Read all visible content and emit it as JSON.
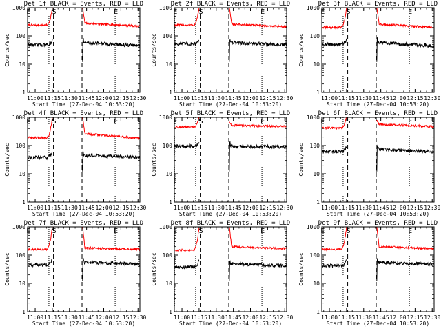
{
  "chart_data": [
    {
      "type": "line",
      "title": "Det 1f BLACK = Events, RED = LLD",
      "xlabel": "Start Time (27-Dec-04 10:53:20)",
      "ylabel": "Counts/sec",
      "yscale": "log",
      "ylim": [
        1,
        1000
      ],
      "xlim": [
        "10:53:20",
        "12:31:40"
      ],
      "x_ticks": [
        "11:00",
        "11:15",
        "11:30",
        "11:45",
        "12:00",
        "12:15",
        "12:30"
      ],
      "y_ticks": [
        "1",
        "10",
        "100",
        "1000"
      ],
      "markers": [
        {
          "label": "E",
          "time": "10:53:30",
          "style": "dotted"
        },
        {
          "label": "",
          "time": "11:12:00",
          "style": "dotted"
        },
        {
          "label": "S",
          "time": "11:16:00",
          "style": "dashed"
        },
        {
          "label": "",
          "time": "11:41:00",
          "style": "dashed"
        },
        {
          "label": "E",
          "time": "12:10:00",
          "style": "dotted"
        }
      ],
      "gap": [
        "11:15:00",
        "11:41:30"
      ],
      "series": [
        {
          "color": "#ff0000",
          "pre_level": 240,
          "peak": 1000,
          "post_peak": 1000,
          "post_level": 280,
          "end_level": 220
        },
        {
          "color": "#000000",
          "pre_level": 48,
          "peak": 70,
          "dip": 12,
          "post_level": 58,
          "end_level": 45
        }
      ]
    },
    {
      "type": "line",
      "title": "Det 2f BLACK = Events, RED = LLD",
      "xlabel": "Start Time (27-Dec-04 10:53:20)",
      "ylabel": "Counts/sec",
      "yscale": "log",
      "ylim": [
        1,
        1000
      ],
      "xlim": [
        "10:53:20",
        "12:31:40"
      ],
      "x_ticks": [
        "11:00",
        "11:15",
        "11:30",
        "11:45",
        "12:00",
        "12:15",
        "12:30"
      ],
      "y_ticks": [
        "1",
        "10",
        "100",
        "1000"
      ],
      "markers": [
        {
          "label": "E",
          "time": "10:53:30",
          "style": "dotted"
        },
        {
          "label": "",
          "time": "11:12:00",
          "style": "dotted"
        },
        {
          "label": "S",
          "time": "11:16:00",
          "style": "dashed"
        },
        {
          "label": "",
          "time": "11:41:00",
          "style": "dashed"
        },
        {
          "label": "E",
          "time": "12:10:00",
          "style": "dotted"
        }
      ],
      "gap": [
        "11:15:00",
        "11:41:30"
      ],
      "series": [
        {
          "color": "#ff0000",
          "pre_level": 240,
          "peak": 1000,
          "post_peak": 1000,
          "post_level": 260,
          "end_level": 210
        },
        {
          "color": "#000000",
          "pre_level": 52,
          "peak": 75,
          "dip": 12,
          "post_level": 58,
          "end_level": 48
        }
      ]
    },
    {
      "type": "line",
      "title": "Det 3f BLACK = Events, RED = LLD",
      "xlabel": "Start Time (27-Dec-04 10:53:20)",
      "ylabel": "Counts/sec",
      "yscale": "log",
      "ylim": [
        1,
        1000
      ],
      "xlim": [
        "10:53:20",
        "12:31:40"
      ],
      "x_ticks": [
        "11:00",
        "11:15",
        "11:30",
        "11:45",
        "12:00",
        "12:15",
        "12:30"
      ],
      "y_ticks": [
        "1",
        "10",
        "100",
        "1000"
      ],
      "markers": [
        {
          "label": "E",
          "time": "10:53:30",
          "style": "dotted"
        },
        {
          "label": "",
          "time": "11:12:00",
          "style": "dotted"
        },
        {
          "label": "S",
          "time": "11:16:00",
          "style": "dashed"
        },
        {
          "label": "",
          "time": "11:41:00",
          "style": "dashed"
        },
        {
          "label": "E",
          "time": "12:10:00",
          "style": "dotted"
        }
      ],
      "gap": [
        "11:15:00",
        "11:41:30"
      ],
      "series": [
        {
          "color": "#ff0000",
          "pre_level": 200,
          "peak": 1000,
          "post_peak": 1000,
          "post_level": 260,
          "end_level": 200
        },
        {
          "color": "#000000",
          "pre_level": 50,
          "peak": 75,
          "dip": 12,
          "post_level": 58,
          "end_level": 45
        }
      ]
    },
    {
      "type": "line",
      "title": "Det 4f BLACK = Events, RED = LLD",
      "xlabel": "Start Time (27-Dec-04 10:53:20)",
      "ylabel": "Counts/sec",
      "yscale": "log",
      "ylim": [
        1,
        1000
      ],
      "xlim": [
        "10:53:20",
        "12:31:40"
      ],
      "x_ticks": [
        "11:00",
        "11:15",
        "11:30",
        "11:45",
        "12:00",
        "12:15",
        "12:30"
      ],
      "y_ticks": [
        "1",
        "10",
        "100",
        "1000"
      ],
      "markers": [
        {
          "label": "E",
          "time": "10:53:30",
          "style": "dotted"
        },
        {
          "label": "",
          "time": "11:12:00",
          "style": "dotted"
        },
        {
          "label": "S",
          "time": "11:16:00",
          "style": "dashed"
        },
        {
          "label": "",
          "time": "11:41:00",
          "style": "dashed"
        },
        {
          "label": "E",
          "time": "12:10:00",
          "style": "dotted"
        }
      ],
      "gap": [
        "11:15:00",
        "11:41:30"
      ],
      "series": [
        {
          "color": "#ff0000",
          "pre_level": 190,
          "peak": 1000,
          "post_peak": 1000,
          "post_level": 260,
          "end_level": 180
        },
        {
          "color": "#000000",
          "pre_level": 38,
          "peak": 60,
          "dip": 12,
          "post_level": 45,
          "end_level": 38
        }
      ]
    },
    {
      "type": "line",
      "title": "Det 5f BLACK = Events, RED = LLD",
      "xlabel": "Start Time (27-Dec-04 10:53:20)",
      "ylabel": "Counts/sec",
      "yscale": "log",
      "ylim": [
        1,
        1000
      ],
      "xlim": [
        "10:53:20",
        "12:31:40"
      ],
      "x_ticks": [
        "11:00",
        "11:15",
        "11:30",
        "11:45",
        "12:00",
        "12:15",
        "12:30"
      ],
      "y_ticks": [
        "1",
        "10",
        "100",
        "1000"
      ],
      "markers": [
        {
          "label": "E",
          "time": "10:53:30",
          "style": "dotted"
        },
        {
          "label": "",
          "time": "11:12:00",
          "style": "dotted"
        },
        {
          "label": "S",
          "time": "11:16:00",
          "style": "dashed"
        },
        {
          "label": "",
          "time": "11:41:00",
          "style": "dashed"
        },
        {
          "label": "E",
          "time": "12:10:00",
          "style": "dotted"
        }
      ],
      "gap": [
        "11:15:00",
        "11:41:30"
      ],
      "series": [
        {
          "color": "#ff0000",
          "pre_level": 450,
          "peak": 1000,
          "post_peak": 700,
          "post_level": 520,
          "end_level": 470
        },
        {
          "color": "#000000",
          "pre_level": 95,
          "peak": 120,
          "dip": 12,
          "post_level": 95,
          "end_level": 90
        }
      ]
    },
    {
      "type": "line",
      "title": "Det 6f BLACK = Events, RED = LLD",
      "xlabel": "Start Time (27-Dec-04 10:53:20)",
      "ylabel": "Counts/sec",
      "yscale": "log",
      "ylim": [
        1,
        1000
      ],
      "xlim": [
        "10:53:20",
        "12:31:40"
      ],
      "x_ticks": [
        "11:00",
        "11:15",
        "11:30",
        "11:45",
        "12:00",
        "12:15",
        "12:30"
      ],
      "y_ticks": [
        "1",
        "10",
        "100",
        "1000"
      ],
      "markers": [
        {
          "label": "E",
          "time": "10:53:30",
          "style": "dotted"
        },
        {
          "label": "",
          "time": "11:12:00",
          "style": "dotted"
        },
        {
          "label": "S",
          "time": "11:16:00",
          "style": "dashed"
        },
        {
          "label": "",
          "time": "11:41:00",
          "style": "dashed"
        },
        {
          "label": "E",
          "time": "12:10:00",
          "style": "dotted"
        }
      ],
      "gap": [
        "11:15:00",
        "11:41:30"
      ],
      "series": [
        {
          "color": "#ff0000",
          "pre_level": 420,
          "peak": 1000,
          "post_peak": 800,
          "post_level": 560,
          "end_level": 470
        },
        {
          "color": "#000000",
          "pre_level": 60,
          "peak": 90,
          "dip": 12,
          "post_level": 75,
          "end_level": 60
        }
      ]
    },
    {
      "type": "line",
      "title": "Det 7f BLACK = Events, RED = LLD",
      "xlabel": "Start Time (27-Dec-04 10:53:20)",
      "ylabel": "Counts/sec",
      "yscale": "log",
      "ylim": [
        1,
        1000
      ],
      "xlim": [
        "10:53:20",
        "12:31:40"
      ],
      "x_ticks": [
        "11:00",
        "11:15",
        "11:30",
        "11:45",
        "12:00",
        "12:15",
        "12:30"
      ],
      "y_ticks": [
        "1",
        "10",
        "100",
        "1000"
      ],
      "markers": [
        {
          "label": "E",
          "time": "10:53:30",
          "style": "dotted"
        },
        {
          "label": "",
          "time": "11:12:00",
          "style": "dotted"
        },
        {
          "label": "S",
          "time": "11:16:00",
          "style": "dashed"
        },
        {
          "label": "",
          "time": "11:41:00",
          "style": "dashed"
        },
        {
          "label": "E",
          "time": "12:10:00",
          "style": "dotted"
        }
      ],
      "gap": [
        "11:15:00",
        "11:41:30"
      ],
      "series": [
        {
          "color": "#ff0000",
          "pre_level": 160,
          "peak": 1000,
          "post_peak": 1000,
          "post_level": 180,
          "end_level": 160
        },
        {
          "color": "#000000",
          "pre_level": 45,
          "peak": 70,
          "dip": 12,
          "post_level": 55,
          "end_level": 48
        }
      ]
    },
    {
      "type": "line",
      "title": "Det 8f BLACK = Events, RED = LLD",
      "xlabel": "Start Time (27-Dec-04 10:53:20)",
      "ylabel": "Counts/sec",
      "yscale": "log",
      "ylim": [
        1,
        1000
      ],
      "xlim": [
        "10:53:20",
        "12:31:40"
      ],
      "x_ticks": [
        "11:00",
        "11:15",
        "11:30",
        "11:45",
        "12:00",
        "12:15",
        "12:30"
      ],
      "y_ticks": [
        "1",
        "10",
        "100",
        "1000"
      ],
      "markers": [
        {
          "label": "E",
          "time": "10:53:30",
          "style": "dotted"
        },
        {
          "label": "",
          "time": "11:12:00",
          "style": "dotted"
        },
        {
          "label": "S",
          "time": "11:16:00",
          "style": "dashed"
        },
        {
          "label": "",
          "time": "11:41:00",
          "style": "dashed"
        },
        {
          "label": "E",
          "time": "12:10:00",
          "style": "dotted"
        }
      ],
      "gap": [
        "11:15:00",
        "11:41:30"
      ],
      "series": [
        {
          "color": "#ff0000",
          "pre_level": 150,
          "peak": 1000,
          "post_peak": 1000,
          "post_level": 200,
          "end_level": 170
        },
        {
          "color": "#000000",
          "pre_level": 38,
          "peak": 65,
          "dip": 12,
          "post_level": 50,
          "end_level": 42
        }
      ]
    },
    {
      "type": "line",
      "title": "Det 9f BLACK = Events, RED = LLD",
      "xlabel": "Start Time (27-Dec-04 10:53:20)",
      "ylabel": "Counts/sec",
      "yscale": "log",
      "ylim": [
        1,
        1000
      ],
      "xlim": [
        "10:53:20",
        "12:31:40"
      ],
      "x_ticks": [
        "11:00",
        "11:15",
        "11:30",
        "11:45",
        "12:00",
        "12:15",
        "12:30"
      ],
      "y_ticks": [
        "1",
        "10",
        "100",
        "1000"
      ],
      "markers": [
        {
          "label": "E",
          "time": "10:53:30",
          "style": "dotted"
        },
        {
          "label": "",
          "time": "11:12:00",
          "style": "dotted"
        },
        {
          "label": "S",
          "time": "11:16:00",
          "style": "dashed"
        },
        {
          "label": "",
          "time": "11:41:00",
          "style": "dashed"
        },
        {
          "label": "E",
          "time": "12:10:00",
          "style": "dotted"
        }
      ],
      "gap": [
        "11:15:00",
        "11:41:30"
      ],
      "series": [
        {
          "color": "#ff0000",
          "pre_level": 160,
          "peak": 1000,
          "post_peak": 1000,
          "post_level": 200,
          "end_level": 170
        },
        {
          "color": "#000000",
          "pre_level": 42,
          "peak": 65,
          "dip": 12,
          "post_level": 55,
          "end_level": 48
        }
      ]
    }
  ]
}
